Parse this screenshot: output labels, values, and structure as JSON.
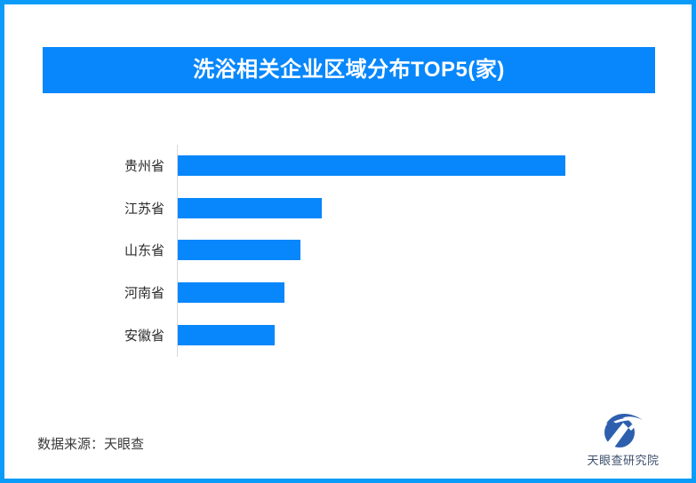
{
  "title_banner": {
    "text": "洗浴相关企业区域分布TOP5(家)",
    "bg_color": "#0787fb",
    "text_color": "#ffffff"
  },
  "chart_data": {
    "type": "bar",
    "orientation": "horizontal",
    "title": "洗浴相关企业区域分布TOP5(家)",
    "unit": "家",
    "categories": [
      "贵州省",
      "江苏省",
      "山东省",
      "河南省",
      "安徽省"
    ],
    "values": [
      436,
      162,
      138,
      120,
      109
    ],
    "value_labels_visible": false,
    "note": "no numeric axis or data labels shown; values are measured relative bar lengths (px)",
    "bar_color": "#0787fb",
    "axis_line_color": "#d9d9d9",
    "grid": false,
    "legend": false
  },
  "footer": {
    "source_text": "数据来源：天眼查",
    "logo_text": "天眼查研究院",
    "logo_color": "#2e5fae"
  },
  "frame": {
    "border_color": "#0a9cf8"
  }
}
